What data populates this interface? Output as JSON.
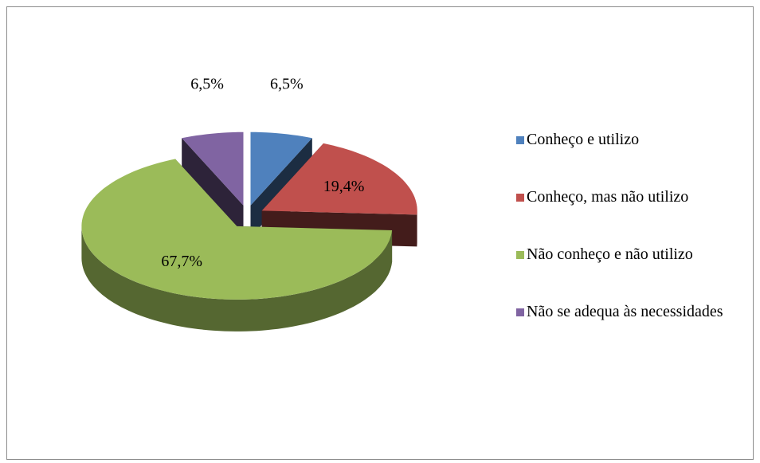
{
  "chart_data": {
    "type": "pie",
    "categories": [
      "Conheço e utilizo",
      "Conheço, mas não utilizo",
      "Não conheço e não utilizo",
      "Não se adequa às necessidades"
    ],
    "values": [
      6.5,
      19.4,
      67.7,
      6.5
    ],
    "value_labels": [
      "6,5%",
      "19,4%",
      "67,7%",
      "6,5%"
    ],
    "colors": [
      "#4f81bd",
      "#c0504d",
      "#9bbb59",
      "#8064a2"
    ],
    "legend": "right"
  }
}
